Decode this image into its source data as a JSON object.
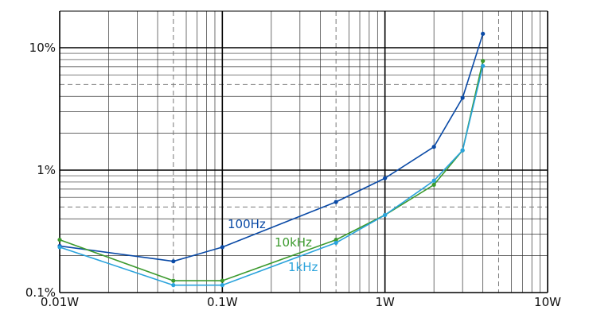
{
  "chart_data": {
    "type": "line",
    "x_scale": "log",
    "y_scale": "log",
    "xlim": [
      0.01,
      10
    ],
    "ylim": [
      0.1,
      20
    ],
    "x_tick_labels": [
      {
        "value": 0.01,
        "label": "0.01W"
      },
      {
        "value": 0.1,
        "label": "0.1W"
      },
      {
        "value": 1,
        "label": "1W"
      },
      {
        "value": 10,
        "label": "10W"
      }
    ],
    "y_tick_labels": [
      {
        "value": 0.1,
        "label": "0.1%"
      },
      {
        "value": 1,
        "label": "1%"
      },
      {
        "value": 10,
        "label": "10%"
      }
    ],
    "grid": true,
    "series": [
      {
        "name": "100Hz",
        "color": "#0a4aa6",
        "x": [
          0.01,
          0.05,
          0.1,
          0.5,
          1,
          2,
          3,
          4
        ],
        "y": [
          0.24,
          0.18,
          0.235,
          0.55,
          0.86,
          1.55,
          3.9,
          13.0
        ]
      },
      {
        "name": "10kHz",
        "color": "#3c9a2e",
        "x": [
          0.01,
          0.05,
          0.1,
          0.5,
          1,
          2,
          3,
          4
        ],
        "y": [
          0.27,
          0.125,
          0.125,
          0.27,
          0.43,
          0.76,
          1.45,
          7.8
        ]
      },
      {
        "name": "1kHz",
        "color": "#2aa3dc",
        "x": [
          0.01,
          0.05,
          0.1,
          0.5,
          1,
          2,
          3,
          4
        ],
        "y": [
          0.235,
          0.115,
          0.115,
          0.255,
          0.43,
          0.82,
          1.45,
          7.1
        ]
      }
    ]
  }
}
